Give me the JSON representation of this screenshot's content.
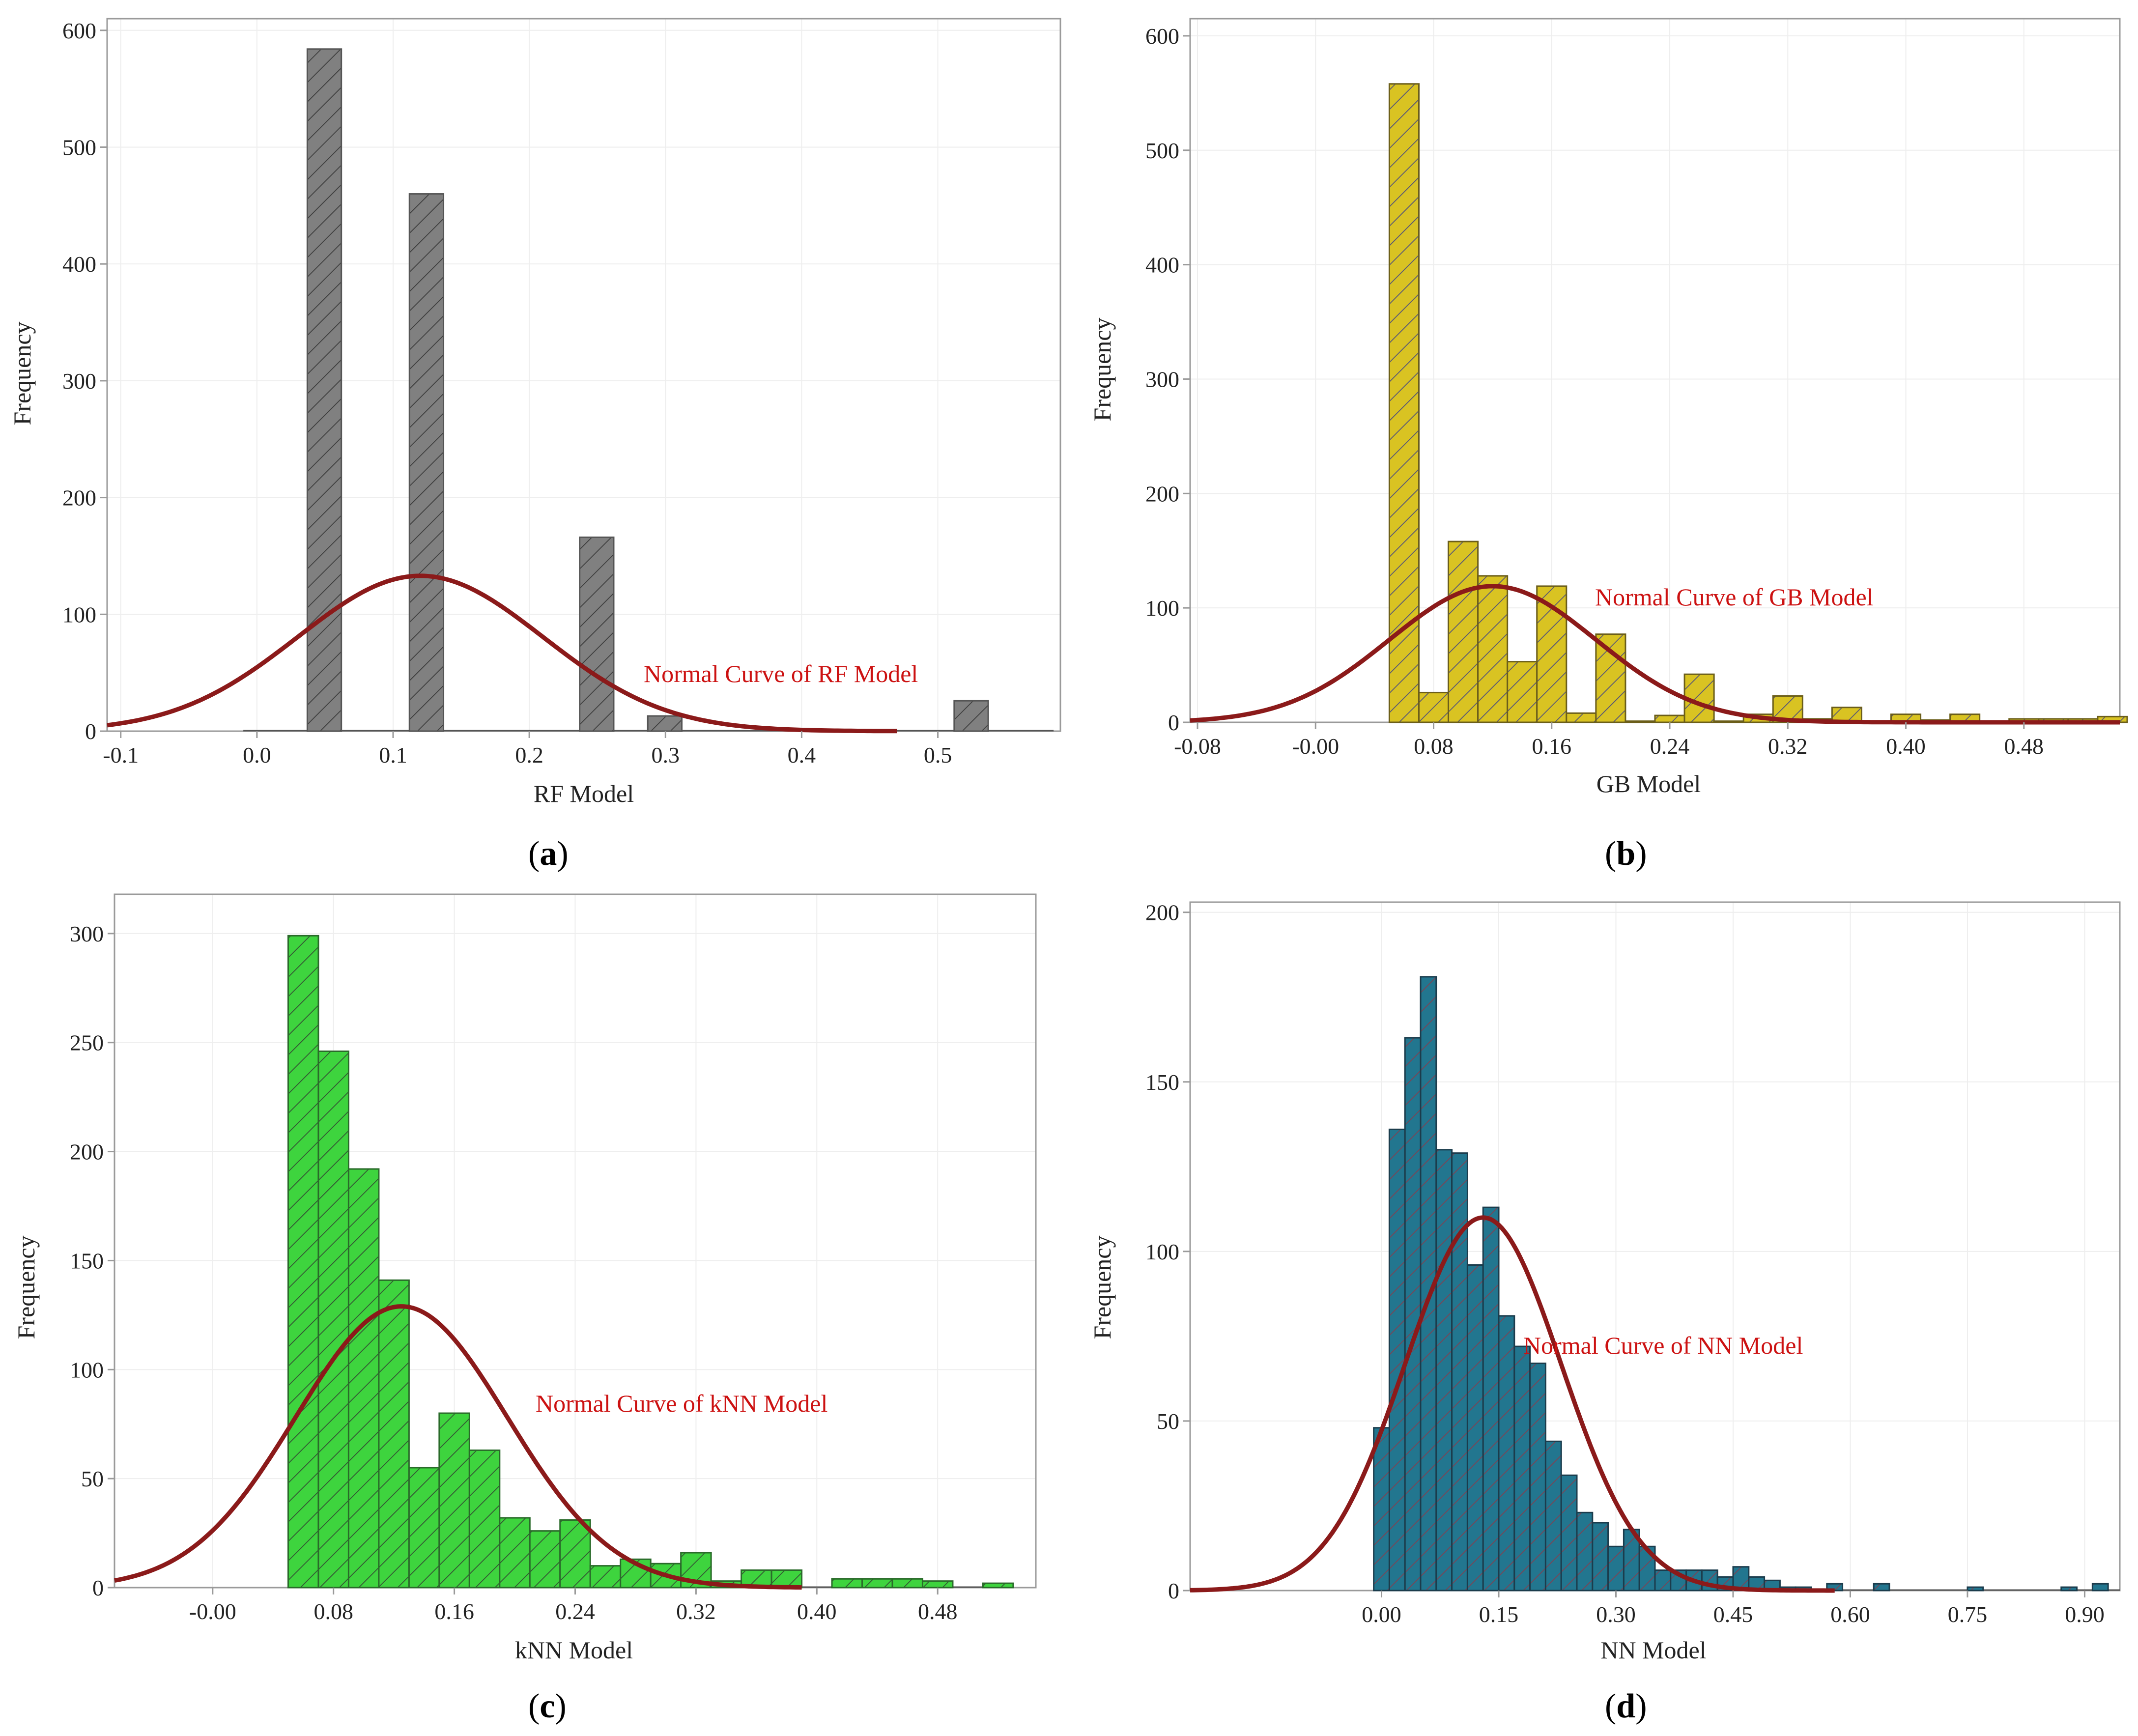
{
  "colors": {
    "curve": "#8b1a1a",
    "curve_label": "#cc1111",
    "frame": "#9a9a9a",
    "grid": "#eeeeee",
    "text": "#222222"
  },
  "chart_data": [
    {
      "id": "a",
      "type": "bar",
      "panel_label": "a",
      "xlabel": "RF Model",
      "ylabel": "Frequency",
      "curve_label": "Normal Curve of RF Model",
      "bar_color": "#808080",
      "bar_stroke": "#555555",
      "hatch_color": "#3d3d3d",
      "xlim": [
        -0.11,
        0.59
      ],
      "ylim": [
        0,
        610
      ],
      "xticks": [
        -0.1,
        0.0,
        0.1,
        0.2,
        0.3,
        0.4,
        0.5
      ],
      "xtick_labels": [
        "-0.1",
        "0.0",
        "0.1",
        "0.2",
        "0.3",
        "0.4",
        "0.5"
      ],
      "yticks": [
        0,
        100,
        200,
        300,
        400,
        500,
        600
      ],
      "ytick_labels": [
        "0",
        "100",
        "200",
        "300",
        "400",
        "500",
        "600"
      ],
      "bar_width": 0.025,
      "bars": [
        [
          0.037,
          584
        ],
        [
          0.112,
          460
        ],
        [
          0.237,
          166
        ],
        [
          0.287,
          13
        ],
        [
          0.512,
          26
        ]
      ],
      "baseline_range": [
        -0.01,
        0.585
      ],
      "normal": {
        "mean": 0.12,
        "sd": 0.09,
        "peak": 133,
        "range": [
          -0.11,
          0.47
        ]
      }
    },
    {
      "id": "b",
      "type": "bar",
      "panel_label": "b",
      "xlabel": "GB Model",
      "ylabel": "Frequency",
      "curve_label": "Normal Curve of GB Model",
      "bar_color": "#d9c322",
      "bar_stroke": "#6b5e1a",
      "hatch_color": "#555577",
      "xlim": [
        -0.085,
        0.545
      ],
      "ylim": [
        0,
        615
      ],
      "xticks": [
        -0.08,
        0.0,
        0.08,
        0.16,
        0.24,
        0.32,
        0.4,
        0.48
      ],
      "xtick_labels": [
        "-0.08",
        "-0.00",
        "0.08",
        "0.16",
        "0.24",
        "0.32",
        "0.40",
        "0.48"
      ],
      "yticks": [
        0,
        100,
        200,
        300,
        400,
        500,
        600
      ],
      "ytick_labels": [
        "0",
        "100",
        "200",
        "300",
        "400",
        "500",
        "600"
      ],
      "bar_width": 0.02,
      "bars": [
        [
          0.05,
          558
        ],
        [
          0.07,
          26
        ],
        [
          0.09,
          158
        ],
        [
          0.11,
          128
        ],
        [
          0.13,
          53
        ],
        [
          0.15,
          119
        ],
        [
          0.17,
          8
        ],
        [
          0.19,
          77
        ],
        [
          0.21,
          1
        ],
        [
          0.23,
          6
        ],
        [
          0.25,
          42
        ],
        [
          0.27,
          1
        ],
        [
          0.29,
          7
        ],
        [
          0.31,
          23
        ],
        [
          0.33,
          3
        ],
        [
          0.35,
          13
        ],
        [
          0.37,
          1
        ],
        [
          0.39,
          7
        ],
        [
          0.41,
          2
        ],
        [
          0.43,
          7
        ],
        [
          0.45,
          1
        ],
        [
          0.47,
          3
        ],
        [
          0.49,
          3
        ],
        [
          0.51,
          3
        ],
        [
          0.53,
          5
        ]
      ],
      "baseline_range": [
        0.05,
        0.545
      ],
      "normal": {
        "mean": 0.12,
        "sd": 0.07,
        "peak": 119,
        "range": [
          -0.085,
          0.545
        ]
      }
    },
    {
      "id": "c",
      "type": "bar",
      "panel_label": "c",
      "xlabel": "kNN Model",
      "ylabel": "Frequency",
      "curve_label": "Normal Curve of kNN Model",
      "bar_color": "#3ed43e",
      "bar_stroke": "#2a6b2a",
      "hatch_color": "#335533",
      "xlim": [
        -0.065,
        0.545
      ],
      "ylim": [
        0,
        318
      ],
      "xticks": [
        0.0,
        0.08,
        0.16,
        0.24,
        0.32,
        0.4,
        0.48
      ],
      "xtick_labels": [
        "-0.00",
        "0.08",
        "0.16",
        "0.24",
        "0.32",
        "0.40",
        "0.48"
      ],
      "yticks": [
        0,
        50,
        100,
        150,
        200,
        250,
        300
      ],
      "ytick_labels": [
        "0",
        "50",
        "100",
        "150",
        "200",
        "250",
        "300"
      ],
      "bar_width": 0.02,
      "bars": [
        [
          0.05,
          299
        ],
        [
          0.07,
          246
        ],
        [
          0.09,
          192
        ],
        [
          0.11,
          141
        ],
        [
          0.13,
          55
        ],
        [
          0.15,
          80
        ],
        [
          0.17,
          63
        ],
        [
          0.19,
          32
        ],
        [
          0.21,
          26
        ],
        [
          0.23,
          31
        ],
        [
          0.25,
          10
        ],
        [
          0.27,
          13
        ],
        [
          0.29,
          11
        ],
        [
          0.31,
          16
        ],
        [
          0.33,
          3
        ],
        [
          0.35,
          8
        ],
        [
          0.37,
          8
        ],
        [
          0.41,
          4
        ],
        [
          0.43,
          4
        ],
        [
          0.45,
          4
        ],
        [
          0.47,
          3
        ],
        [
          0.51,
          2
        ]
      ],
      "baseline_range": [
        0.05,
        0.53
      ],
      "normal": {
        "mean": 0.125,
        "sd": 0.07,
        "peak": 129,
        "range": [
          -0.065,
          0.39
        ]
      }
    },
    {
      "id": "d",
      "type": "bar",
      "panel_label": "d",
      "xlabel": "NN Model",
      "ylabel": "Frequency",
      "curve_label": "Normal Curve of NN Model",
      "bar_color": "#22768f",
      "bar_stroke": "#1b3c4c",
      "hatch_color": "#7a4455",
      "xlim": [
        -0.245,
        0.945
      ],
      "ylim": [
        0,
        203
      ],
      "xticks": [
        0.0,
        0.15,
        0.3,
        0.45,
        0.6,
        0.75,
        0.9
      ],
      "xtick_labels": [
        "0.00",
        "0.15",
        "0.30",
        "0.45",
        "0.60",
        "0.75",
        "0.90"
      ],
      "yticks": [
        0,
        50,
        100,
        150,
        200
      ],
      "ytick_labels": [
        "0",
        "50",
        "100",
        "150",
        "200"
      ],
      "bar_width": 0.02,
      "bars": [
        [
          -0.01,
          48
        ],
        [
          0.01,
          136
        ],
        [
          0.03,
          163
        ],
        [
          0.05,
          181
        ],
        [
          0.07,
          130
        ],
        [
          0.09,
          129
        ],
        [
          0.11,
          96
        ],
        [
          0.13,
          113
        ],
        [
          0.15,
          81
        ],
        [
          0.17,
          72
        ],
        [
          0.19,
          67
        ],
        [
          0.21,
          44
        ],
        [
          0.23,
          34
        ],
        [
          0.25,
          23
        ],
        [
          0.27,
          20
        ],
        [
          0.29,
          13
        ],
        [
          0.31,
          18
        ],
        [
          0.33,
          13
        ],
        [
          0.35,
          6
        ],
        [
          0.37,
          6
        ],
        [
          0.39,
          6
        ],
        [
          0.41,
          6
        ],
        [
          0.43,
          4
        ],
        [
          0.45,
          7
        ],
        [
          0.47,
          4
        ],
        [
          0.49,
          3
        ],
        [
          0.51,
          1
        ],
        [
          0.53,
          1
        ],
        [
          0.57,
          2
        ],
        [
          0.63,
          2
        ],
        [
          0.75,
          1
        ],
        [
          0.87,
          1
        ],
        [
          0.91,
          2
        ]
      ],
      "baseline_range": [
        -0.01,
        0.945
      ],
      "normal": {
        "mean": 0.13,
        "sd": 0.1,
        "peak": 110,
        "range": [
          -0.245,
          0.58
        ]
      }
    }
  ]
}
